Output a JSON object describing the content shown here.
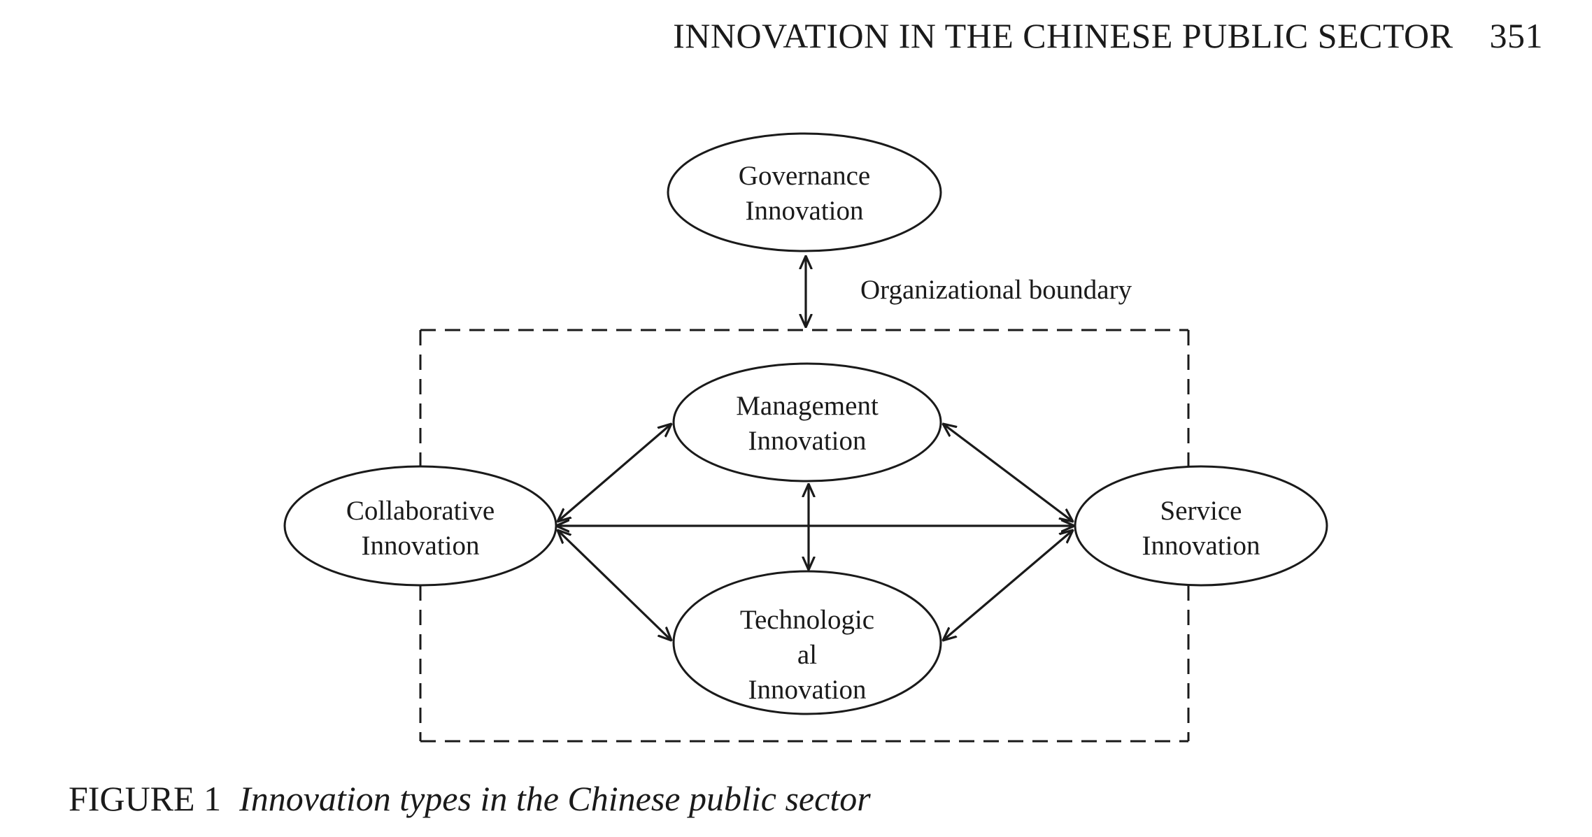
{
  "header": {
    "running_title": "INNOVATION IN THE CHINESE PUBLIC SECTOR",
    "page_number": "351"
  },
  "diagram": {
    "boundary_label": "Organizational boundary",
    "nodes": {
      "governance": {
        "line1": "Governance",
        "line2": "Innovation"
      },
      "management": {
        "line1": "Management",
        "line2": "Innovation"
      },
      "collaborative": {
        "line1": "Collaborative",
        "line2": "Innovation"
      },
      "service": {
        "line1": "Service",
        "line2": "Innovation"
      },
      "technological": {
        "line1": "Technologic",
        "line2": "al",
        "line3": "Innovation"
      }
    }
  },
  "caption": {
    "number": "FIGURE 1",
    "text": "Innovation types in the Chinese public sector"
  },
  "colors": {
    "ink": "#1a1a1a",
    "background": "#ffffff"
  }
}
